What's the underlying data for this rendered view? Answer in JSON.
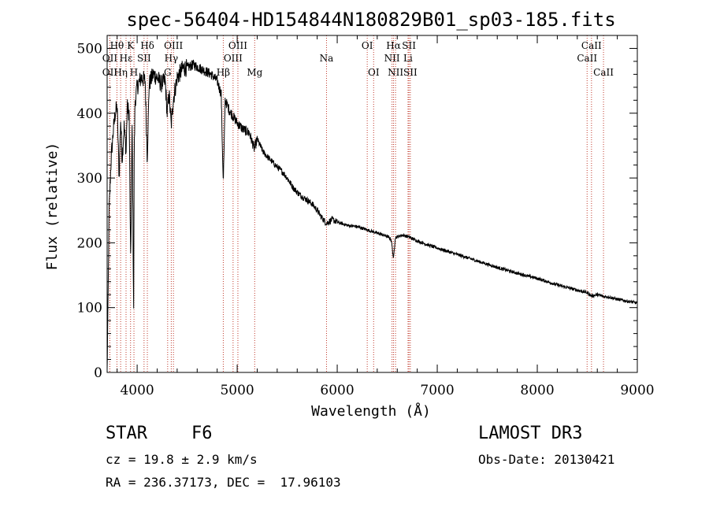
{
  "chart_data": {
    "type": "line",
    "title": "spec-56404-HD154844N180829B01_sp03-185.fits",
    "xlabel": "Wavelength (Å)",
    "ylabel": "Flux (relative)",
    "xlim": [
      3700,
      9000
    ],
    "ylim": [
      0,
      520
    ],
    "xticks": [
      4000,
      5000,
      6000,
      7000,
      8000,
      9000
    ],
    "yticks": [
      0,
      100,
      200,
      300,
      400,
      500
    ],
    "spectrum_anchors": {
      "x": [
        3700,
        3705,
        3720,
        3740,
        3760,
        3780,
        3800,
        3820,
        3835,
        3850,
        3870,
        3890,
        3900,
        3920,
        3935,
        3950,
        3965,
        3970,
        3980,
        4000,
        4040,
        4080,
        4101,
        4120,
        4160,
        4200,
        4240,
        4280,
        4300,
        4320,
        4340,
        4360,
        4400,
        4460,
        4500,
        4560,
        4620,
        4680,
        4740,
        4800,
        4840,
        4861,
        4880,
        4920,
        4960,
        5000,
        5060,
        5120,
        5172,
        5200,
        5260,
        5320,
        5380,
        5450,
        5500,
        5560,
        5620,
        5680,
        5750,
        5800,
        5850,
        5893,
        5950,
        6000,
        6100,
        6200,
        6300,
        6400,
        6500,
        6540,
        6563,
        6580,
        6650,
        6700,
        6800,
        6900,
        7000,
        7200,
        7400,
        7600,
        7800,
        8000,
        8200,
        8400,
        8500,
        8542,
        8600,
        8662,
        8700,
        8800,
        8900,
        9000
      ],
      "y": [
        0,
        60,
        250,
        330,
        370,
        400,
        410,
        300,
        390,
        330,
        380,
        340,
        410,
        400,
        170,
        380,
        100,
        330,
        420,
        440,
        455,
        450,
        330,
        445,
        460,
        455,
        445,
        450,
        400,
        430,
        380,
        420,
        455,
        470,
        470,
        475,
        470,
        465,
        460,
        450,
        430,
        290,
        420,
        405,
        395,
        385,
        375,
        370,
        345,
        360,
        340,
        330,
        320,
        310,
        300,
        285,
        275,
        268,
        260,
        250,
        238,
        230,
        236,
        232,
        227,
        225,
        220,
        215,
        210,
        205,
        175,
        208,
        212,
        210,
        203,
        197,
        192,
        182,
        172,
        162,
        153,
        145,
        135,
        127,
        123,
        118,
        120,
        117,
        117,
        113,
        110,
        107
      ]
    },
    "spectral_lines": [
      {
        "label": "Hθ",
        "wavelength": 3798,
        "row": 1
      },
      {
        "label": "OII",
        "wavelength": 3727,
        "row": 2
      },
      {
        "label": "OII",
        "wavelength": 3727,
        "row": 3
      },
      {
        "label": "Hη",
        "wavelength": 3835,
        "row": 3
      },
      {
        "label": "Hε",
        "wavelength": 3889,
        "row": 2
      },
      {
        "label": "K",
        "wavelength": 3934,
        "row": 1
      },
      {
        "label": "H",
        "wavelength": 3968,
        "row": 3
      },
      {
        "label": "SII",
        "wavelength": 4069,
        "row": 2
      },
      {
        "label": "Hδ",
        "wavelength": 4102,
        "row": 1
      },
      {
        "label": "OIII",
        "wavelength": 4363,
        "row": 1
      },
      {
        "label": "Hγ",
        "wavelength": 4341,
        "row": 2
      },
      {
        "label": "G",
        "wavelength": 4305,
        "row": 3
      },
      {
        "label": "Hβ",
        "wavelength": 4861,
        "row": 3
      },
      {
        "label": "OIII",
        "wavelength": 4959,
        "row": 2
      },
      {
        "label": "OIII",
        "wavelength": 5007,
        "row": 1
      },
      {
        "label": "Mg",
        "wavelength": 5175,
        "row": 3
      },
      {
        "label": "Na",
        "wavelength": 5893,
        "row": 2
      },
      {
        "label": "OI",
        "wavelength": 6300,
        "row": 1
      },
      {
        "label": "OI",
        "wavelength": 6364,
        "row": 3
      },
      {
        "label": "Hα",
        "wavelength": 6563,
        "row": 1
      },
      {
        "label": "NII",
        "wavelength": 6548,
        "row": 2
      },
      {
        "label": "NII",
        "wavelength": 6583,
        "row": 3
      },
      {
        "label": "SII",
        "wavelength": 6717,
        "row": 1
      },
      {
        "label": "Li",
        "wavelength": 6708,
        "row": 2
      },
      {
        "label": "SII",
        "wavelength": 6731,
        "row": 3
      },
      {
        "label": "CaII",
        "wavelength": 8498,
        "row": 2
      },
      {
        "label": "CaII",
        "wavelength": 8542,
        "row": 1
      },
      {
        "label": "CaII",
        "wavelength": 8662,
        "row": 3
      }
    ]
  },
  "info": {
    "class": "STAR",
    "subclass": "F6",
    "cz": "cz = 19.8 ± 2.9 km/s",
    "radec": "RA = 236.37173, DEC =  17.96103",
    "survey": "LAMOST DR3",
    "obs_date": "Obs-Date: 20130421"
  }
}
